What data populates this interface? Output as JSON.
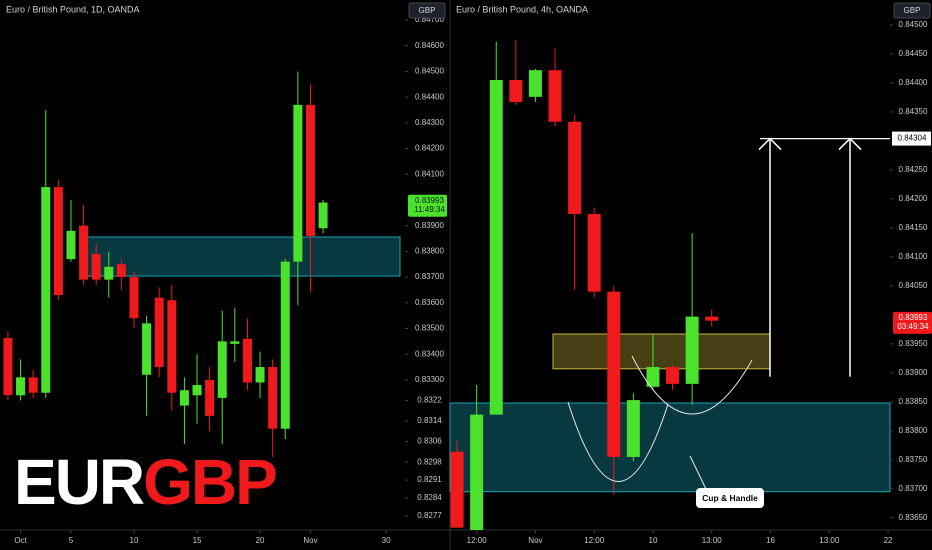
{
  "branding": {
    "base": "EUR",
    "quote": "GBP"
  },
  "annotation": "Cup & Handle",
  "chart_data": [
    {
      "type": "candlestick",
      "title": "Euro / British Pound, 1D, OANDA",
      "currency": "GBP",
      "up_color": "#4be22e",
      "down_color": "#f0191b",
      "open": [
        0.83463,
        0.8324,
        0.8331,
        0.8325,
        0.8405,
        0.8377,
        0.839,
        0.8379,
        0.8369,
        0.8375,
        0.837,
        0.8332,
        0.8362,
        0.8361,
        0.832,
        0.8324,
        0.833,
        0.8323,
        0.8344,
        0.8346,
        0.8329,
        0.8335,
        0.8311,
        0.8376,
        0.8437,
        0.8389
      ],
      "high": [
        0.8349,
        0.8338,
        0.8334,
        0.8435,
        0.8408,
        0.84,
        0.8398,
        0.8383,
        0.838,
        0.8377,
        0.8372,
        0.8355,
        0.8366,
        0.8367,
        0.8331,
        0.834,
        0.8335,
        0.8357,
        0.8358,
        0.8354,
        0.8341,
        0.8338,
        0.8377,
        0.845,
        0.8445,
        0.84
      ],
      "low": [
        0.8322,
        0.8322,
        0.8323,
        0.8323,
        0.8361,
        0.8376,
        0.8367,
        0.8367,
        0.8362,
        0.8365,
        0.835,
        0.8316,
        0.8331,
        0.8318,
        0.8305,
        0.8313,
        0.831,
        0.8305,
        0.8337,
        0.8326,
        0.8323,
        0.83,
        0.8307,
        0.8359,
        0.8364,
        0.8387
      ],
      "close": [
        0.83241,
        0.8331,
        0.8325,
        0.8405,
        0.8363,
        0.8388,
        0.8369,
        0.8369,
        0.8374,
        0.837,
        0.8354,
        0.8352,
        0.8335,
        0.8325,
        0.8326,
        0.8328,
        0.8316,
        0.8345,
        0.8345,
        0.8329,
        0.8335,
        0.8311,
        0.8376,
        0.8437,
        0.8386,
        0.8399
      ],
      "xlim": [
        -0.63,
        31.5
      ],
      "xticks": [
        {
          "value": 1,
          "label": "Oct"
        },
        5,
        10,
        15,
        20,
        {
          "value": 24,
          "label": "Nov"
        },
        30
      ],
      "ylim": [
        0.82716,
        0.84778
      ],
      "yticks": [
        {
          "value": 0.847,
          "label": "0.84700"
        },
        {
          "value": 0.846,
          "label": "0.84600"
        },
        {
          "value": 0.845,
          "label": "0.84500"
        },
        {
          "value": 0.844,
          "label": "0.84400"
        },
        {
          "value": 0.843,
          "label": "0.84300"
        },
        {
          "value": 0.842,
          "label": "0.84200"
        },
        {
          "value": 0.841,
          "label": "0.84100"
        },
        {
          "value": 0.839,
          "label": "0.83900"
        },
        {
          "value": 0.838,
          "label": "0.83800"
        },
        {
          "value": 0.837,
          "label": "0.83700"
        },
        {
          "value": 0.836,
          "label": "0.83600"
        },
        {
          "value": 0.835,
          "label": "0.83500"
        },
        {
          "value": 0.834,
          "label": "0.83400"
        },
        {
          "value": 0.833,
          "label": "0.83300"
        },
        0.8322,
        0.8314,
        0.8306,
        0.8298,
        0.8291,
        0.8284,
        0.8277
      ],
      "last_price": 0.83993,
      "countdown": "11:49:34",
      "last_color": "#4be22e",
      "zones": [
        {
          "lower": 0.83704,
          "upper": 0.83856,
          "color": "#1aa3b8"
        }
      ]
    },
    {
      "type": "candlestick",
      "title": "Euro / British Pound, 4h, OANDA",
      "currency": "GBP",
      "up_color": "#4be22e",
      "down_color": "#f0191b",
      "open": [
        0.83764,
        0.83629,
        0.83828,
        0.84405,
        0.84376,
        0.84422,
        0.84333,
        0.84174,
        0.8404,
        0.83755,
        0.83876,
        0.8391,
        0.83881,
        0.83997
      ],
      "high": [
        0.83784,
        0.83879,
        0.84471,
        0.84474,
        0.84424,
        0.8446,
        0.84345,
        0.84185,
        0.8405,
        0.83865,
        0.83966,
        0.83915,
        0.84141,
        0.84009
      ],
      "low": [
        0.83633,
        0.83629,
        0.83828,
        0.84362,
        0.84367,
        0.84325,
        0.84043,
        0.8403,
        0.8369,
        0.83748,
        0.8387,
        0.8387,
        0.83845,
        0.8398
      ],
      "close": [
        0.83633,
        0.83828,
        0.84405,
        0.84367,
        0.84422,
        0.84333,
        0.84174,
        0.8404,
        0.83755,
        0.83853,
        0.8391,
        0.83881,
        0.83997,
        0.8399
      ],
      "xlim": [
        -0.36,
        22.1
      ],
      "xticks": [
        {
          "value": 1,
          "label": "12:00"
        },
        {
          "value": 4,
          "label": "Nov"
        },
        {
          "value": 7,
          "label": "12:00"
        },
        10,
        {
          "value": 13,
          "label": "13:00"
        },
        16,
        {
          "value": 19,
          "label": "13:00"
        },
        22
      ],
      "ylim": [
        0.83629,
        0.84543
      ],
      "yticks": [
        {
          "value": 0.845,
          "label": "0.84500"
        },
        {
          "value": 0.8445,
          "label": "0.84450"
        },
        {
          "value": 0.844,
          "label": "0.84400"
        },
        {
          "value": 0.8435,
          "label": "0.84350"
        },
        {
          "value": 0.8425,
          "label": "0.84250"
        },
        {
          "value": 0.842,
          "label": "0.84200"
        },
        {
          "value": 0.8415,
          "label": "0.84150"
        },
        {
          "value": 0.841,
          "label": "0.84100"
        },
        {
          "value": 0.8405,
          "label": "0.84050"
        },
        {
          "value": 0.8395,
          "label": "0.83950"
        },
        {
          "value": 0.839,
          "label": "0.83900"
        },
        {
          "value": 0.8385,
          "label": "0.83850"
        },
        {
          "value": 0.838,
          "label": "0.83800"
        },
        {
          "value": 0.8375,
          "label": "0.83750"
        },
        {
          "value": 0.837,
          "label": "0.83700"
        },
        {
          "value": 0.8365,
          "label": "0.83650"
        }
      ],
      "last_price": 0.83993,
      "countdown": "03:49:34",
      "last_color": "#f0191b",
      "target": 0.84304,
      "zones": [
        {
          "lower": 0.83907,
          "upper": 0.83967,
          "color": "#c8b43a"
        },
        {
          "lower": 0.83695,
          "upper": 0.83848,
          "color": "#1aa3b8"
        }
      ]
    }
  ]
}
